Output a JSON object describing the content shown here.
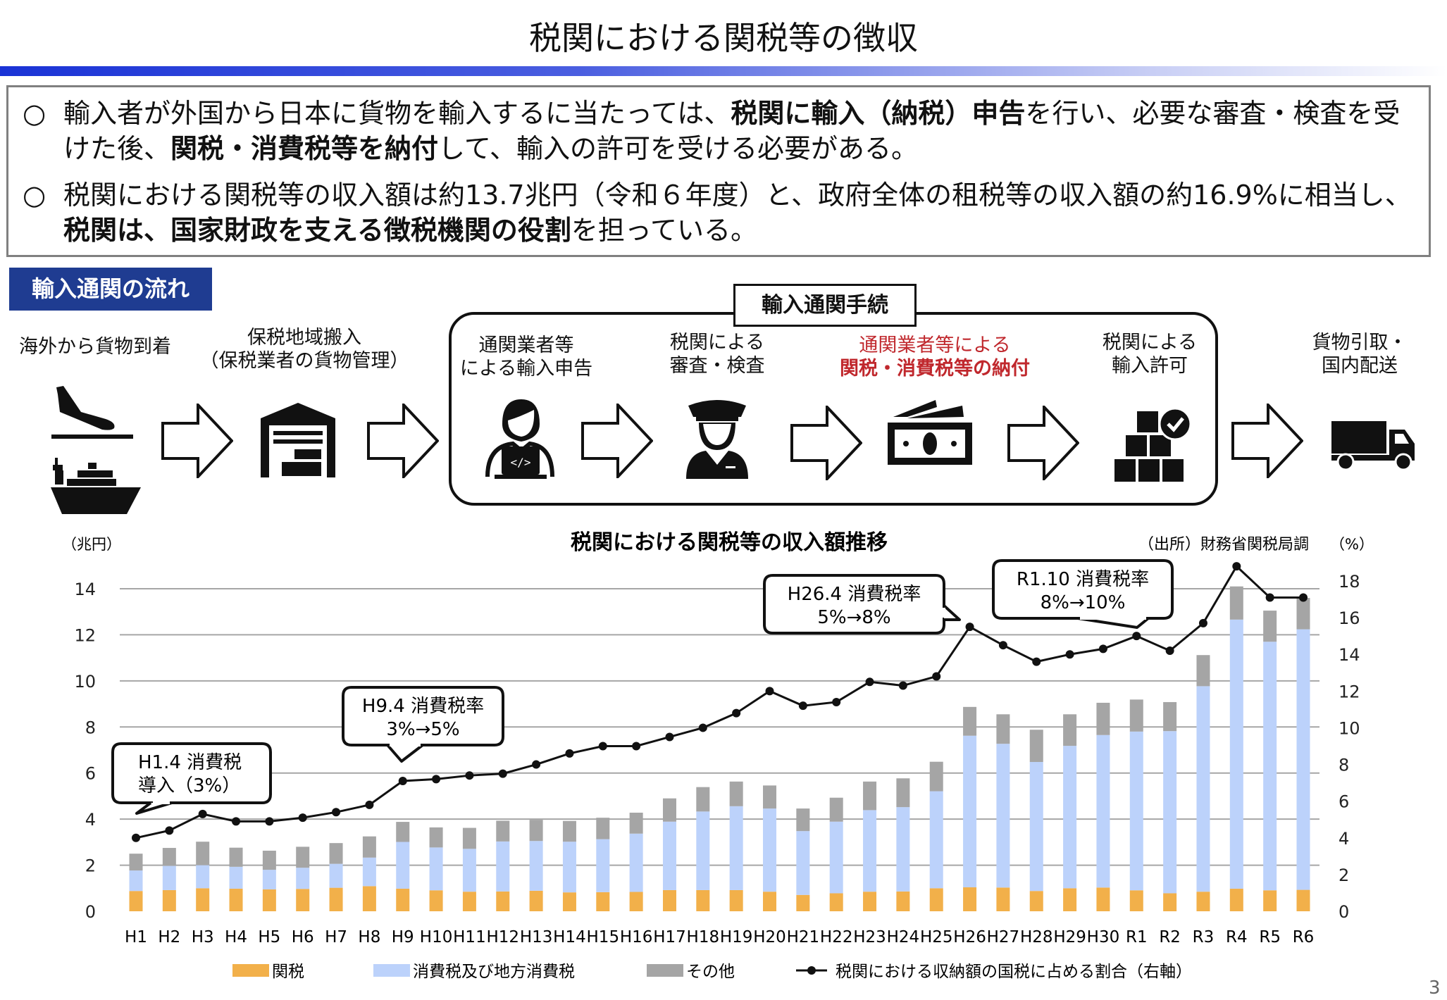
{
  "title": "税関における関税等の徴収",
  "summary": {
    "bullet": "○",
    "p1": [
      "輸入者が外国から日本に貨物を輸入するに当たっては、",
      "税関に輸入（納税）申告",
      "を行い、必要な審査・検査を受けた後、",
      "関税・消費税等を納付",
      "して、輸入の許可を受ける必要がある。"
    ],
    "p2": [
      "税関における関税等の収入額は約13.7兆円（令和６年度）と、政府全体の租税等の収入額の約16.9%に相当し、",
      "税関は、国家財政を支える徴税機関の役割",
      "を担っている。"
    ]
  },
  "flow": {
    "section_label": "輸入通関の流れ",
    "procedure_label": "輸入通関手続",
    "steps": [
      {
        "l1": "海外から貨物到着",
        "l2": "",
        "icon": "plane-ship-icon"
      },
      {
        "l1": "保税地域搬入",
        "l2": "（保税業者の貨物管理）",
        "icon": "warehouse-icon"
      },
      {
        "l1": "通関業者等",
        "l2": "による輸入申告",
        "icon": "person-laptop-icon"
      },
      {
        "l1": "税関による",
        "l2": "審査・検査",
        "icon": "customs-officer-icon"
      },
      {
        "l1": "通関業者等による",
        "l2": "関税・消費税等の納付",
        "icon": "money-icon"
      },
      {
        "l1": "税関による",
        "l2": "輸入許可",
        "icon": "boxes-check-icon"
      },
      {
        "l1": "貨物引取・",
        "l2": "国内配送",
        "icon": "truck-icon"
      }
    ],
    "highlight_color": "#c0282d"
  },
  "chart_data": {
    "type": "bar",
    "stacked": true,
    "title": "税関における関税等の収入額推移",
    "ylabel": "（兆円）",
    "y2label": "（%）",
    "source": "（出所）財務省関税局調",
    "ylim": [
      0,
      14
    ],
    "yticks": [
      0,
      2,
      4,
      6,
      8,
      10,
      12,
      14
    ],
    "y2lim": [
      0,
      18
    ],
    "y2ticks": [
      0,
      2,
      4,
      6,
      8,
      10,
      12,
      14,
      16,
      18
    ],
    "grid": true,
    "legend": "bottom",
    "categories": [
      "H1",
      "H2",
      "H3",
      "H4",
      "H5",
      "H6",
      "H7",
      "H8",
      "H9",
      "H10",
      "H11",
      "H12",
      "H13",
      "H14",
      "H15",
      "H16",
      "H17",
      "H18",
      "H19",
      "H20",
      "H21",
      "H22",
      "H23",
      "H24",
      "H25",
      "H26",
      "H27",
      "H28",
      "H29",
      "H30",
      "R1",
      "R2",
      "R3",
      "R4",
      "R5",
      "R6"
    ],
    "series": [
      {
        "name": "関税",
        "color": "#f2b04a",
        "values": [
          0.88,
          0.92,
          1.0,
          0.98,
          0.95,
          0.97,
          1.02,
          1.09,
          0.98,
          0.91,
          0.85,
          0.86,
          0.89,
          0.82,
          0.83,
          0.84,
          0.92,
          0.92,
          0.92,
          0.85,
          0.71,
          0.78,
          0.85,
          0.86,
          1.0,
          1.04,
          1.03,
          0.88,
          1.0,
          1.03,
          0.91,
          0.78,
          0.85,
          0.98,
          0.91,
          0.93
        ]
      },
      {
        "name": "消費税及び地方消費税",
        "color": "#bcd2fb",
        "values": [
          0.89,
          1.05,
          1.0,
          0.95,
          0.85,
          0.92,
          1.04,
          1.24,
          2.03,
          1.86,
          1.86,
          2.17,
          2.16,
          2.2,
          2.3,
          2.53,
          2.97,
          3.41,
          3.64,
          3.61,
          2.77,
          3.11,
          3.54,
          3.66,
          4.21,
          6.58,
          6.24,
          5.6,
          6.18,
          6.62,
          6.89,
          7.04,
          8.92,
          11.68,
          10.79,
          11.31
        ]
      },
      {
        "name": "その他",
        "color": "#a5a5a5",
        "values": [
          0.73,
          0.78,
          1.02,
          0.83,
          0.83,
          0.91,
          0.9,
          0.92,
          0.87,
          0.87,
          0.91,
          0.9,
          0.92,
          0.9,
          0.93,
          0.91,
          1.01,
          1.06,
          1.07,
          1.0,
          0.98,
          1.04,
          1.24,
          1.25,
          1.28,
          1.25,
          1.28,
          1.4,
          1.37,
          1.4,
          1.39,
          1.26,
          1.35,
          1.44,
          1.35,
          1.36
        ]
      },
      {
        "name": "税関における収納額の国税に占める割合（右軸）",
        "type": "line",
        "axis": "right",
        "color": "#111111",
        "values": [
          4.0,
          4.4,
          5.3,
          4.9,
          4.9,
          5.1,
          5.4,
          5.8,
          7.1,
          7.2,
          7.4,
          7.5,
          8.0,
          8.6,
          9.0,
          9.0,
          9.5,
          10.0,
          10.8,
          12.0,
          11.2,
          11.4,
          12.5,
          12.3,
          12.8,
          15.5,
          14.5,
          13.6,
          14.0,
          14.3,
          15.0,
          14.2,
          15.7,
          18.8,
          17.1,
          17.1
        ]
      }
    ],
    "annotations": [
      {
        "l1": "H1.4 消費税",
        "l2": "導入（3%）",
        "align": "left"
      },
      {
        "l1": "H9.4 消費税率",
        "l2": "3%→5%",
        "align": "center"
      },
      {
        "l1": "H26.4 消費税率",
        "l2": "5%→8%",
        "align": "center"
      },
      {
        "l1": "R1.10 消費税率",
        "l2": "8%→10%",
        "align": "center"
      }
    ]
  },
  "page_number": "3"
}
